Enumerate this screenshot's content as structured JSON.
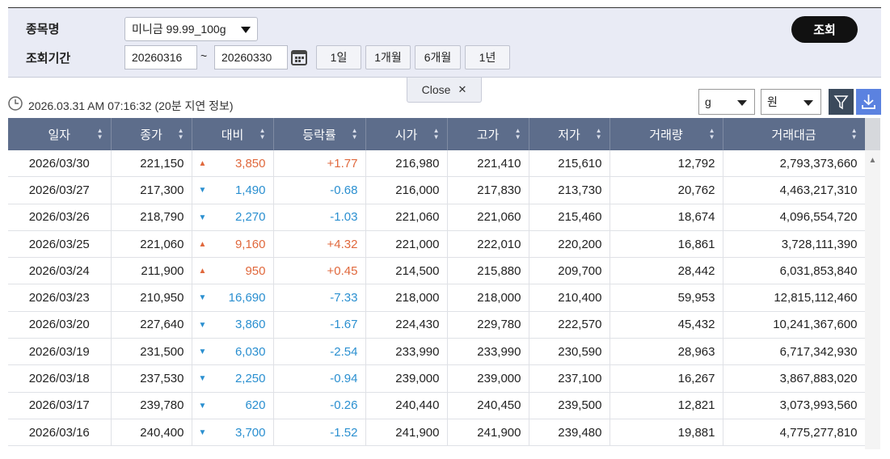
{
  "filter": {
    "item_label": "종목명",
    "item_value": "미니금 99.99_100g",
    "period_label": "조회기간",
    "start": "20260316",
    "tilde": "~",
    "end": "20260330",
    "buttons": [
      "1일",
      "1개월",
      "6개월",
      "1년"
    ],
    "search": "조회",
    "close": "Close"
  },
  "info": {
    "timestamp": "2026.03.31 AM 07:16:32",
    "delay": "(20분 지연 정보)",
    "unit": "g",
    "currency": "원"
  },
  "table": {
    "headers": [
      "일자",
      "종가",
      "대비",
      "등락률",
      "시가",
      "고가",
      "저가",
      "거래량",
      "거래대금"
    ],
    "rows": [
      [
        "2026/03/30",
        "221,150",
        "▲",
        "3,850",
        "+1.77",
        "216,980",
        "221,410",
        "215,610",
        "12,792",
        "2,793,373,660"
      ],
      [
        "2026/03/27",
        "217,300",
        "▼",
        "1,490",
        "-0.68",
        "216,000",
        "217,830",
        "213,730",
        "20,762",
        "4,463,217,310"
      ],
      [
        "2026/03/26",
        "218,790",
        "▼",
        "2,270",
        "-1.03",
        "221,060",
        "221,060",
        "215,460",
        "18,674",
        "4,096,554,720"
      ],
      [
        "2026/03/25",
        "221,060",
        "▲",
        "9,160",
        "+4.32",
        "221,000",
        "222,010",
        "220,200",
        "16,861",
        "3,728,111,390"
      ],
      [
        "2026/03/24",
        "211,900",
        "▲",
        "950",
        "+0.45",
        "214,500",
        "215,880",
        "209,700",
        "28,442",
        "6,031,853,840"
      ],
      [
        "2026/03/23",
        "210,950",
        "▼",
        "16,690",
        "-7.33",
        "218,000",
        "218,000",
        "210,400",
        "59,953",
        "12,815,112,460"
      ],
      [
        "2026/03/20",
        "227,640",
        "▼",
        "3,860",
        "-1.67",
        "224,430",
        "229,780",
        "222,570",
        "45,432",
        "10,241,367,600"
      ],
      [
        "2026/03/19",
        "231,500",
        "▼",
        "6,030",
        "-2.54",
        "233,990",
        "233,990",
        "230,590",
        "28,963",
        "6,717,342,930"
      ],
      [
        "2026/03/18",
        "237,530",
        "▼",
        "2,250",
        "-0.94",
        "239,000",
        "239,000",
        "237,100",
        "16,267",
        "3,867,883,020"
      ],
      [
        "2026/03/17",
        "239,780",
        "▼",
        "620",
        "-0.26",
        "240,440",
        "240,450",
        "239,500",
        "12,821",
        "3,073,993,560"
      ],
      [
        "2026/03/16",
        "240,400",
        "▼",
        "3,700",
        "-1.52",
        "241,900",
        "241,900",
        "239,480",
        "19,881",
        "4,775,277,810"
      ]
    ]
  }
}
